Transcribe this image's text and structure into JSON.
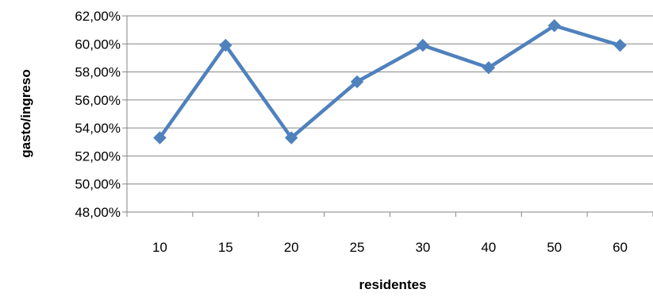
{
  "chart_data": {
    "type": "line",
    "categories": [
      "10",
      "15",
      "20",
      "25",
      "30",
      "40",
      "50",
      "60"
    ],
    "series": [
      {
        "values": [
          53.3,
          59.9,
          53.3,
          57.3,
          59.9,
          58.3,
          61.3,
          59.9
        ],
        "color": "#4F81BD",
        "marker": "diamond"
      }
    ],
    "xlabel": "residentes",
    "ylabel": "gasto/ingreso",
    "ylim": [
      48,
      62
    ],
    "y_step": 2,
    "y_ticks": [
      "48,00%",
      "50,00%",
      "52,00%",
      "54,00%",
      "56,00%",
      "58,00%",
      "60,00%",
      "62,00%"
    ],
    "grid": true,
    "legend": "none"
  }
}
